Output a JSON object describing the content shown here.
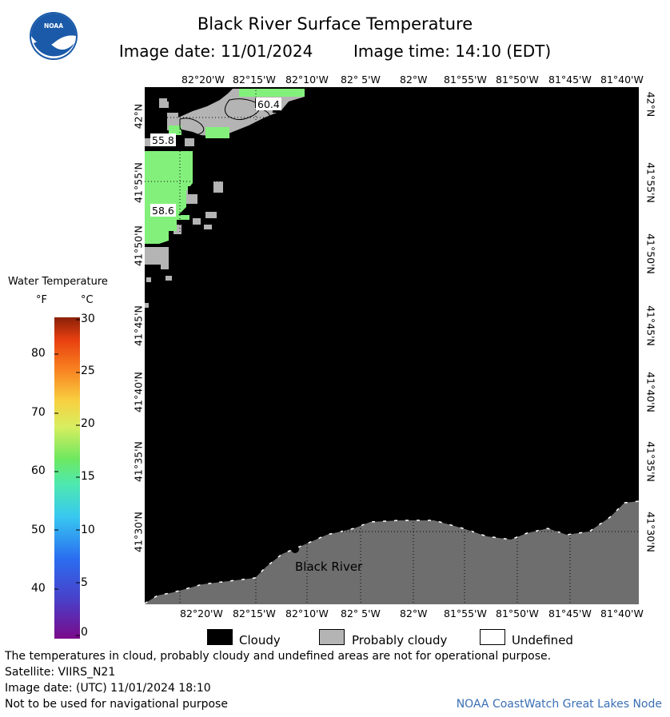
{
  "header": {
    "title": "Black River Surface Temperature",
    "image_date_label": "Image date: 11/01/2024",
    "image_time_label": "Image time: 14:10 (EDT)",
    "logo_text": "NOAA"
  },
  "map": {
    "top_lon_labels": [
      "82°20'W",
      "82°15'W",
      "82°10'W",
      "82° 5'W",
      "82°W",
      "81°55'W",
      "81°50'W",
      "81°45'W",
      "81°40'W"
    ],
    "bottom_lon_labels": [
      "82°20'W",
      "82°15'W",
      "82°10'W",
      "82° 5'W",
      "82°W",
      "81°55'W",
      "81°50'W",
      "81°45'W",
      "81°40'W"
    ],
    "lat_labels": [
      "42°N",
      "41°55'N",
      "41°50'N",
      "41°45'N",
      "41°40'N",
      "41°35'N",
      "41°30'N"
    ],
    "temp_labels": [
      "60.4",
      "55.8",
      "58.6"
    ],
    "place_label": "Black River",
    "colors": {
      "cloudy": "#000000",
      "probably_cloudy": "#b4b4b4",
      "land": "#6e6e6e",
      "water_warm": "#84f07c"
    }
  },
  "legend": {
    "title": "Water Temperature",
    "unit_f": "°F",
    "unit_c": "°C",
    "f_ticks": [
      "80",
      "70",
      "60",
      "50",
      "40"
    ],
    "c_ticks": [
      "30",
      "25",
      "20",
      "15",
      "10",
      "5",
      "0"
    ]
  },
  "key": {
    "cloudy": "Cloudy",
    "probably_cloudy": "Probably cloudy",
    "undefined": "Undefined"
  },
  "footer": {
    "disclaimer": "The temperatures in cloud, probably cloudy and undefined areas are not for operational purpose.",
    "satellite": "Satellite: VIIRS_N21",
    "image_date_utc": "Image date: (UTC) 11/01/2024  18:10",
    "navigation": "Not to be used for navigational purpose",
    "credit": "NOAA CoastWatch Great Lakes Node"
  }
}
